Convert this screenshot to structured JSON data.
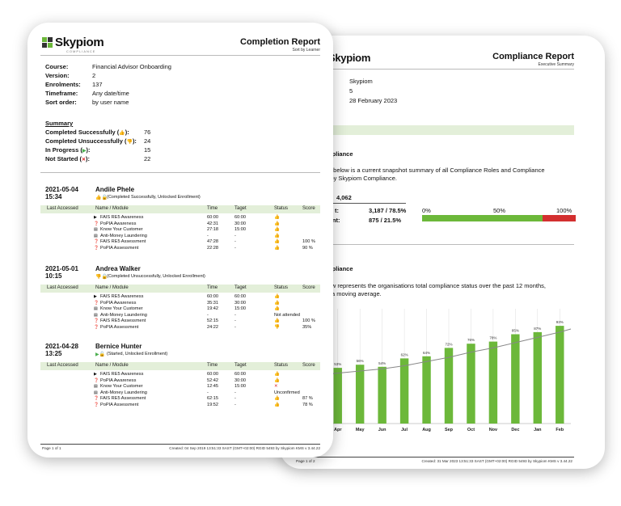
{
  "compliance_report": {
    "logo": "Skypiom",
    "title": "Compliance Report",
    "subtitle": "Executive Summary",
    "org": "Skypiom",
    "version": "5",
    "date": "28 February 2023",
    "section1_title": "mpliance",
    "section1_text_1": "tion below is a current snapshot summary of all Compliance Roles and Compliance",
    "section1_text_2": "ed by Skypiom Compliance.",
    "total": "4,062",
    "compliant": "3,187 / 78.5%",
    "noncompliant": "875 / 21.5%",
    "bar_labels": [
      "0%",
      "50%",
      "100%"
    ],
    "compliant_fraction": 0.785,
    "section2_title": "mpliance",
    "section2_text_1": "low represents the organisations total compliance status over the past 12 months,",
    "section2_text_2": "a moving average.",
    "footer_left": "Page 1 of 2",
    "footer_right": "Created: 31 Mar 2023 13:51:33 SAST (GMT+02:00) RGID 5493 by Skypiom KMS v 3.44.22"
  },
  "chart_data": {
    "type": "bar",
    "categories": [
      "Apr",
      "May",
      "Jun",
      "Jul",
      "Aug",
      "Sep",
      "Oct",
      "Nov",
      "Dec",
      "Jan",
      "Feb"
    ],
    "values": [
      53,
      56,
      54,
      62,
      64,
      72,
      76,
      78,
      85,
      87,
      93
    ],
    "labels": [
      "53%",
      "56%",
      "54%",
      "62%",
      "64%",
      "72%",
      "76%",
      "78%",
      "85%",
      "87%",
      "93%"
    ],
    "trend": [
      48,
      50,
      52,
      55,
      59,
      63,
      68,
      72,
      77,
      82,
      87
    ],
    "ylim": [
      0,
      100
    ],
    "colors": {
      "bar": "#6cb83a",
      "line": "#888888"
    }
  },
  "completion_report": {
    "logo": "Skypiom",
    "logo_sub": "COMPLIANCE",
    "title": "Completion Report",
    "subtitle": "Sort by Learner",
    "info": [
      {
        "label": "Course:",
        "value": "Financial Advisor Onboarding"
      },
      {
        "label": "Version:",
        "value": "2"
      },
      {
        "label": "Enrolments:",
        "value": "137"
      },
      {
        "label": "Timeframe:",
        "value": "Any date/time"
      },
      {
        "label": "Sort order:",
        "value": "by user name"
      }
    ],
    "summary_title": "Summary",
    "summary": [
      {
        "label": "Completed Successfully (",
        "icon": "👍",
        "close": "):",
        "value": "76"
      },
      {
        "label": "Completed Unsuccessfully (",
        "icon": "👎",
        "close": "):",
        "value": "24"
      },
      {
        "label": "In Progress (",
        "icon": "▶",
        "close": "):",
        "value": "15"
      },
      {
        "label": "Not Started (",
        "icon": "✕",
        "close": "):",
        "value": "22"
      }
    ],
    "headers": {
      "accessed": "Last Accessed",
      "module": "Name / Module",
      "time": "Time",
      "target": "Taget",
      "status": "Status",
      "score": "Score"
    },
    "learners": [
      {
        "date": "2021-05-04",
        "time": "15:34",
        "name": "Andile Phele",
        "status": "(Completed Successfully, Unlocked Enrollment)",
        "rows": [
          {
            "module": "FAIS RE5 Awareness",
            "time": "60:00",
            "target": "60:00",
            "status": "👍",
            "score": ""
          },
          {
            "module": "PoPIA Awareness",
            "time": "42:31",
            "target": "30:00",
            "status": "👍",
            "score": ""
          },
          {
            "module": "Know Your Customer",
            "time": "27:18",
            "target": "15:00",
            "status": "👍",
            "score": ""
          },
          {
            "module": "Anti-Money Laundering",
            "time": "-",
            "target": "-",
            "status": "👍",
            "score": ""
          },
          {
            "module": "FAIS RE5 Assessment",
            "time": "47:28",
            "target": "-",
            "status": "👍",
            "score": "100 %"
          },
          {
            "module": "PoPIA Assessment",
            "time": "22:28",
            "target": "-",
            "status": "👍",
            "score": "90 %"
          }
        ]
      },
      {
        "date": "2021-05-01",
        "time": "10:15",
        "name": "Andrea Walker",
        "status": "(Completed Unsuccessfully, Unlocked Enrollment)",
        "rows": [
          {
            "module": "FAIS RE5 Awareness",
            "time": "60:00",
            "target": "60:00",
            "status": "👍",
            "score": ""
          },
          {
            "module": "PoPIA Awareness",
            "time": "35:31",
            "target": "30:00",
            "status": "👍",
            "score": ""
          },
          {
            "module": "Know Your Customer",
            "time": "19:42",
            "target": "15:00",
            "status": "👍",
            "score": ""
          },
          {
            "module": "Anti-Money Laundering",
            "time": "-",
            "target": "-",
            "status": "Not attended",
            "score": ""
          },
          {
            "module": "FAIS RE5 Assessment",
            "time": "52:15",
            "target": "-",
            "status": "👍",
            "score": "100 %"
          },
          {
            "module": "PoPIA Assessment",
            "time": "24:22",
            "target": "-",
            "status": "👎",
            "score": "35%"
          }
        ]
      },
      {
        "date": "2021-04-28",
        "time": "13:25",
        "name": "Bernice Hunter",
        "status": "(Started, Unlocked Enrollment)",
        "rows": [
          {
            "module": "FAIS RE5 Awareness",
            "time": "60:00",
            "target": "60:00",
            "status": "👍",
            "score": ""
          },
          {
            "module": "PoPIA Awareness",
            "time": "52:42",
            "target": "30:00",
            "status": "👍",
            "score": ""
          },
          {
            "module": "Know Your Customer",
            "time": "12:45",
            "target": "15:00",
            "status": "✕",
            "score": ""
          },
          {
            "module": "Anti-Money Laundering",
            "time": "-",
            "target": "-",
            "status": "Unconfirmed",
            "score": ""
          },
          {
            "module": "FAIS RE5 Assessment",
            "time": "62:15",
            "target": "-",
            "status": "👍",
            "score": "87 %"
          },
          {
            "module": "PoPIA Assessment",
            "time": "19:52",
            "target": "-",
            "status": "👍",
            "score": "78 %"
          }
        ]
      }
    ],
    "footer_left": "Page 1 of 1",
    "footer_right": "Created: 04 Sep 2019 13:51:33 SAST (GMT+02:00) RGID 5493 by Skypiom KMS v 3.44.22"
  }
}
